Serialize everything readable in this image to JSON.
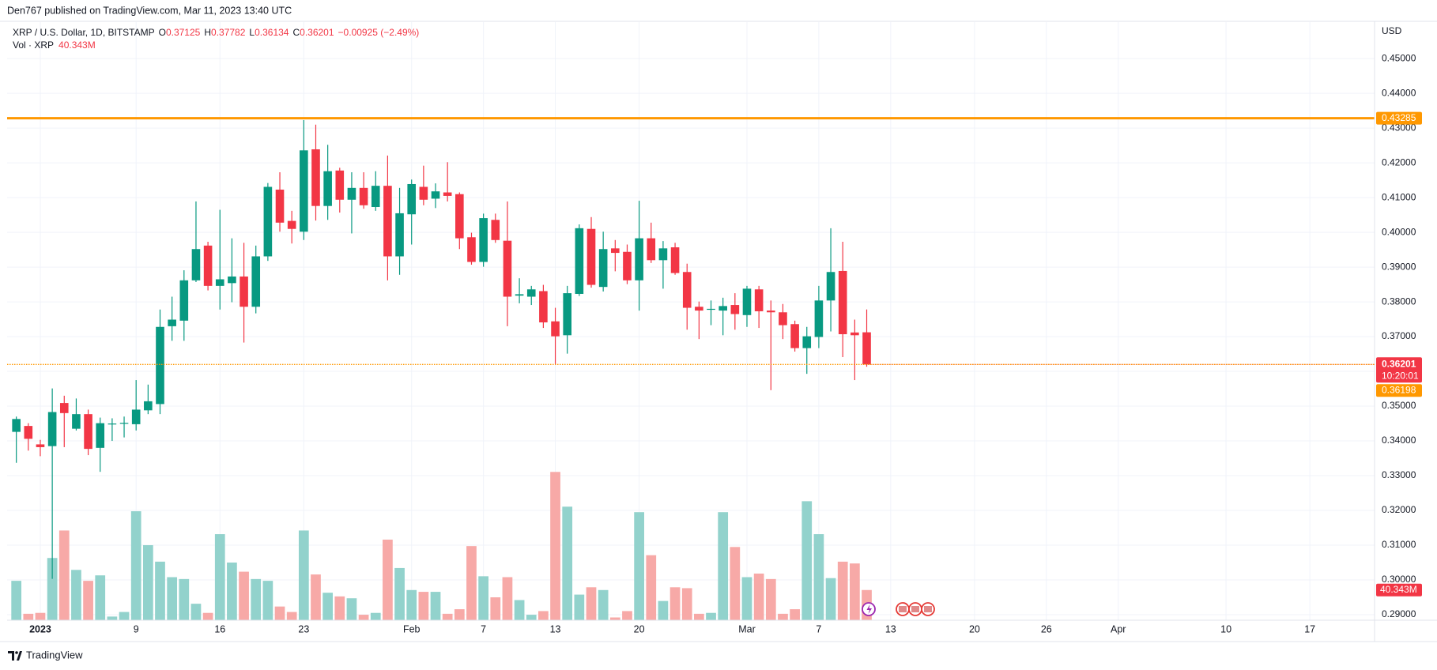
{
  "published": "Den767 published on TradingView.com, Mar 11, 2023 13:40 UTC",
  "footer": "TradingView",
  "chart_data": {
    "type": "candlestick",
    "symbol": "XRP / U.S. Dollar, 1D, BITSTAMP",
    "ohlc_keys": [
      "O",
      "H",
      "L",
      "C"
    ],
    "change": "−0.00925 (−2.49%)",
    "volume_title": "Vol · XRP",
    "volume_last_label": "40.343M",
    "currency": "USD",
    "countdown": "10:20:01",
    "up_color": "#089981",
    "down_color": "#f23645",
    "volume_up_color": "#92d2cc",
    "volume_down_color": "#f7a9a7",
    "grid": true,
    "xlim": [
      -0.77,
      113.4
    ],
    "ylim": [
      0.2884,
      0.4605
    ],
    "volume_ylim": [
      0,
      250
    ],
    "xticks": [
      {
        "value": 2,
        "label": "2023"
      },
      {
        "value": 10,
        "label": "9"
      },
      {
        "value": 17,
        "label": "16"
      },
      {
        "value": 24,
        "label": "23"
      },
      {
        "value": 33,
        "label": "Feb"
      },
      {
        "value": 39,
        "label": "7"
      },
      {
        "value": 45,
        "label": "13"
      },
      {
        "value": 52,
        "label": "20"
      },
      {
        "value": 61,
        "label": "Mar"
      },
      {
        "value": 67,
        "label": "7"
      },
      {
        "value": 73,
        "label": "13"
      },
      {
        "value": 80,
        "label": "20"
      },
      {
        "value": 86,
        "label": "26"
      },
      {
        "value": 92,
        "label": "Apr"
      },
      {
        "value": 101,
        "label": "10"
      },
      {
        "value": 108,
        "label": "17"
      }
    ],
    "yticks": [
      {
        "value": 0.29,
        "label": "0.29000"
      },
      {
        "value": 0.3,
        "label": "0.30000"
      },
      {
        "value": 0.31,
        "label": "0.31000"
      },
      {
        "value": 0.32,
        "label": "0.32000"
      },
      {
        "value": 0.33,
        "label": "0.33000"
      },
      {
        "value": 0.34,
        "label": "0.34000"
      },
      {
        "value": 0.35,
        "label": "0.35000"
      },
      {
        "value": 0.36,
        "label": "0.36000"
      },
      {
        "value": 0.37,
        "label": "0.37000"
      },
      {
        "value": 0.38,
        "label": "0.38000"
      },
      {
        "value": 0.39,
        "label": "0.39000"
      },
      {
        "value": 0.4,
        "label": "0.40000"
      },
      {
        "value": 0.41,
        "label": "0.41000"
      },
      {
        "value": 0.42,
        "label": "0.42000"
      },
      {
        "value": 0.43,
        "label": "0.43000"
      },
      {
        "value": 0.44,
        "label": "0.44000"
      },
      {
        "value": 0.45,
        "label": "0.45000"
      }
    ],
    "hlines": [
      {
        "value": 0.43285,
        "color": "#ff9800",
        "style": "solid"
      },
      {
        "value": 0.36198,
        "color": "#ff9800",
        "style": "dotted"
      }
    ],
    "open": [
      0.3426,
      0.3443,
      0.339,
      0.3385,
      0.3509,
      0.3435,
      0.3477,
      0.338,
      0.3448,
      0.345,
      0.3448,
      0.3488,
      0.3506,
      0.373,
      0.3746,
      0.3862,
      0.3962,
      0.3846,
      0.3854,
      0.3873,
      0.3786,
      0.3931,
      0.4123,
      0.4033,
      0.4002,
      0.4239,
      0.4076,
      0.4178,
      0.4094,
      0.4128,
      0.4073,
      0.4134,
      0.3931,
      0.4052,
      0.4131,
      0.4097,
      0.4115,
      0.411,
      0.3986,
      0.3915,
      0.4036,
      0.3976,
      0.3818,
      0.3815,
      0.3831,
      0.3744,
      0.3704,
      0.3823,
      0.401,
      0.3843,
      0.3954,
      0.3944,
      0.3862,
      0.3983,
      0.392,
      0.3957,
      0.3886,
      0.3786,
      0.3778,
      0.3775,
      0.3791,
      0.3762,
      0.3836,
      0.3775,
      0.377,
      0.3736,
      0.3667,
      0.3699,
      0.3804,
      0.3889,
      0.3712,
      0.37125
    ],
    "high": [
      0.347,
      0.3451,
      0.3403,
      0.3551,
      0.353,
      0.3522,
      0.349,
      0.3467,
      0.3465,
      0.347,
      0.3575,
      0.3562,
      0.3778,
      0.3815,
      0.3891,
      0.4089,
      0.3973,
      0.4065,
      0.3983,
      0.397,
      0.3962,
      0.4142,
      0.4173,
      0.4062,
      0.4323,
      0.431,
      0.4252,
      0.4186,
      0.4173,
      0.4173,
      0.4176,
      0.4221,
      0.4128,
      0.4152,
      0.4192,
      0.4141,
      0.4202,
      0.4115,
      0.3999,
      0.4054,
      0.4054,
      0.4089,
      0.3868,
      0.3846,
      0.3849,
      0.3783,
      0.3846,
      0.4023,
      0.4044,
      0.4002,
      0.3978,
      0.3965,
      0.4091,
      0.4028,
      0.3975,
      0.397,
      0.391,
      0.3801,
      0.3804,
      0.3812,
      0.3825,
      0.3846,
      0.3846,
      0.3804,
      0.3794,
      0.3746,
      0.3728,
      0.3846,
      0.4012,
      0.3973,
      0.3749,
      0.37782
    ],
    "low": [
      0.3337,
      0.3372,
      0.3356,
      0.3003,
      0.3382,
      0.343,
      0.3359,
      0.3311,
      0.34,
      0.341,
      0.343,
      0.3477,
      0.3477,
      0.3688,
      0.3688,
      0.3857,
      0.3833,
      0.3778,
      0.3799,
      0.3683,
      0.3767,
      0.3918,
      0.4002,
      0.3968,
      0.3978,
      0.4034,
      0.4036,
      0.4057,
      0.3997,
      0.4068,
      0.4062,
      0.3862,
      0.3878,
      0.3965,
      0.4078,
      0.407,
      0.4089,
      0.3952,
      0.3907,
      0.3901,
      0.397,
      0.373,
      0.3796,
      0.3791,
      0.3725,
      0.362,
      0.3651,
      0.3817,
      0.3841,
      0.383,
      0.3888,
      0.3851,
      0.3775,
      0.3912,
      0.3838,
      0.3878,
      0.372,
      0.3693,
      0.3733,
      0.3704,
      0.372,
      0.3728,
      0.3725,
      0.3546,
      0.3693,
      0.3657,
      0.3593,
      0.3667,
      0.3715,
      0.3641,
      0.3575,
      0.36134
    ],
    "close": [
      0.3463,
      0.3406,
      0.3382,
      0.3483,
      0.348,
      0.3477,
      0.3377,
      0.3451,
      0.345,
      0.3452,
      0.349,
      0.3514,
      0.3728,
      0.3749,
      0.3862,
      0.3952,
      0.3846,
      0.3865,
      0.3873,
      0.3786,
      0.3931,
      0.4131,
      0.4028,
      0.401,
      0.4236,
      0.4076,
      0.4176,
      0.4094,
      0.4128,
      0.4078,
      0.4134,
      0.3931,
      0.4055,
      0.4139,
      0.4094,
      0.4118,
      0.4105,
      0.3983,
      0.3915,
      0.4041,
      0.3978,
      0.3815,
      0.3822,
      0.3836,
      0.3741,
      0.3701,
      0.3825,
      0.4012,
      0.3849,
      0.3952,
      0.3941,
      0.3862,
      0.3983,
      0.392,
      0.3954,
      0.3883,
      0.3783,
      0.3775,
      0.378,
      0.3788,
      0.3765,
      0.3838,
      0.3773,
      0.377,
      0.3733,
      0.3667,
      0.3701,
      0.3804,
      0.3886,
      0.3707,
      0.3704,
      0.36201
    ],
    "volume": [
      52.6,
      8.6,
      9.8,
      83.1,
      119.8,
      67.2,
      52.6,
      59.9,
      4.9,
      11.0,
      145.5,
      100.2,
      78.2,
      57.5,
      55.0,
      22.0,
      9.8,
      114.9,
      77.0,
      64.8,
      55.0,
      52.6,
      18.3,
      11.0,
      119.8,
      61.1,
      36.7,
      31.8,
      29.3,
      7.3,
      9.8,
      107.6,
      69.7,
      40.3,
      37.9,
      37.9,
      8.6,
      14.7,
      99.0,
      58.7,
      30.6,
      57.5,
      26.9,
      7.3,
      12.2,
      198.0,
      151.6,
      34.2,
      44.0,
      40.3,
      3.7,
      12.2,
      144.3,
      86.8,
      25.7,
      44.0,
      42.8,
      8.6,
      9.8,
      144.3,
      97.8,
      57.5,
      62.3,
      55.0,
      8.6,
      14.7,
      158.9,
      114.9,
      56.2,
      78.2,
      75.8,
      40.343
    ]
  }
}
